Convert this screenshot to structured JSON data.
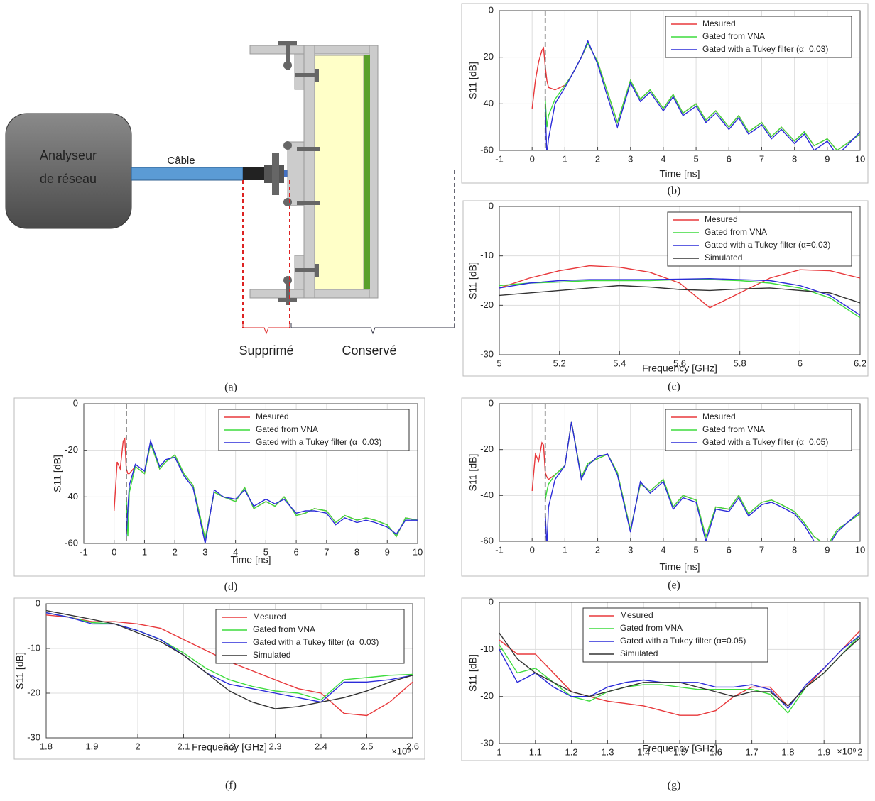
{
  "diagram": {
    "analyzer_lines": [
      "Analyseur",
      "de réseau"
    ],
    "cable": "Câble",
    "removed": "Supprimé",
    "kept": "Conservé",
    "caption": "(a)"
  },
  "chart_data": [
    {
      "type": "line",
      "caption": "(b)",
      "xlabel": "Time [ns]",
      "ylabel": "S11 [dB]",
      "legend": "upper right",
      "grid": true,
      "marker_x": 0.4,
      "xlim": [
        -1,
        10
      ],
      "ylim": [
        -60,
        0
      ],
      "xticks": [
        -1,
        0,
        1,
        2,
        3,
        4,
        5,
        6,
        7,
        8,
        9,
        10
      ],
      "yticks": [
        -60,
        -40,
        -20,
        0
      ],
      "x": [
        0,
        0.1,
        0.2,
        0.3,
        0.35,
        0.4,
        0.45,
        0.5,
        0.7,
        1,
        1.2,
        1.5,
        1.7,
        2,
        2.3,
        2.6,
        3,
        3.3,
        3.6,
        4,
        4.3,
        4.6,
        5,
        5.3,
        5.6,
        6,
        6.3,
        6.6,
        7,
        7.3,
        7.6,
        8,
        8.3,
        8.6,
        9,
        9.3,
        9.6,
        10
      ],
      "series": [
        {
          "name": "Mesured",
          "color": "#e8383b",
          "values": [
            -42,
            -30,
            -22,
            -17,
            -16,
            -24,
            -30,
            -33,
            -34,
            -32,
            -28,
            -20,
            -14,
            -22,
            -35,
            -48,
            -30,
            -38,
            -34,
            -42,
            -36,
            -44,
            -40,
            -47,
            -43,
            -50,
            -45,
            -52,
            -48,
            -54,
            -50,
            -56,
            -52,
            -58,
            -55,
            -60,
            -57,
            -53
          ]
        },
        {
          "name": "Gated from VNA",
          "color": "#3ddc3d",
          "values": [
            null,
            null,
            null,
            null,
            null,
            -38,
            -50,
            -45,
            -38,
            -32,
            -28,
            -20,
            -14,
            -22,
            -35,
            -48,
            -30,
            -38,
            -34,
            -42,
            -36,
            -44,
            -40,
            -47,
            -43,
            -50,
            -45,
            -52,
            -48,
            -54,
            -50,
            -56,
            -52,
            -58,
            -55,
            -60,
            -57,
            -53
          ]
        },
        {
          "name": "Gated with a Tukey filter (α=0.03)",
          "color": "#2b2bd9",
          "values": [
            null,
            null,
            null,
            null,
            null,
            -42,
            -62,
            -55,
            -40,
            -33,
            -28,
            -20,
            -13,
            -23,
            -37,
            -50,
            -31,
            -39,
            -35,
            -43,
            -37,
            -45,
            -41,
            -48,
            -44,
            -51,
            -46,
            -53,
            -49,
            -55,
            -51,
            -57,
            -53,
            -60,
            -56,
            -62,
            -58,
            -52
          ]
        }
      ]
    },
    {
      "type": "line",
      "caption": "(c)",
      "xlabel": "Frequency [GHz]",
      "ylabel": "S11 [dB]",
      "legend": "upper right",
      "grid": true,
      "xlim": [
        5,
        6.2
      ],
      "ylim": [
        -30,
        0
      ],
      "xticks": [
        5,
        5.2,
        5.4,
        5.6,
        5.8,
        6,
        6.2
      ],
      "yticks": [
        -30,
        -20,
        -10,
        0
      ],
      "x": [
        5,
        5.1,
        5.2,
        5.3,
        5.4,
        5.5,
        5.6,
        5.7,
        5.8,
        5.9,
        6,
        6.1,
        6.2
      ],
      "series": [
        {
          "name": "Mesured",
          "color": "#e8383b",
          "values": [
            -16.5,
            -14.5,
            -13,
            -12,
            -12.3,
            -13.3,
            -15.5,
            -20.5,
            -17.5,
            -14.5,
            -12.8,
            -13,
            -14.5
          ]
        },
        {
          "name": "Gated from VNA",
          "color": "#3ddc3d",
          "values": [
            -16,
            -15.5,
            -15.3,
            -15,
            -15,
            -15,
            -14.8,
            -14.8,
            -15,
            -15.5,
            -16.5,
            -18.5,
            -22.5
          ]
        },
        {
          "name": "Gated with a Tukey filter (α=0.03)",
          "color": "#2b2bd9",
          "values": [
            -16.5,
            -15.5,
            -15,
            -14.8,
            -14.8,
            -14.8,
            -14.7,
            -14.6,
            -14.8,
            -15,
            -16,
            -18,
            -22
          ]
        },
        {
          "name": "Simulated",
          "color": "#333333",
          "values": [
            -18,
            -17.5,
            -17,
            -16.5,
            -16,
            -16.3,
            -16.8,
            -17,
            -16.7,
            -16.5,
            -17,
            -17.5,
            -19.5
          ]
        }
      ]
    },
    {
      "type": "line",
      "caption": "(d)",
      "xlabel": "Time [ns]",
      "ylabel": "S11 [dB]",
      "legend": "upper right",
      "grid": true,
      "marker_x": 0.4,
      "xlim": [
        -1,
        10
      ],
      "ylim": [
        -60,
        0
      ],
      "xticks": [
        -1,
        0,
        1,
        2,
        3,
        4,
        5,
        6,
        7,
        8,
        9,
        10
      ],
      "yticks": [
        -60,
        -40,
        -20,
        0
      ],
      "x": [
        0,
        0.1,
        0.2,
        0.3,
        0.35,
        0.4,
        0.45,
        0.5,
        0.7,
        1,
        1.2,
        1.5,
        1.7,
        2,
        2.3,
        2.6,
        3,
        3.3,
        3.6,
        4,
        4.3,
        4.6,
        5,
        5.3,
        5.6,
        6,
        6.3,
        6.6,
        7,
        7.3,
        7.6,
        8,
        8.3,
        8.6,
        9,
        9.3,
        9.6,
        10
      ],
      "series": [
        {
          "name": "Mesured",
          "color": "#e8383b",
          "values": [
            -46,
            -25,
            -28,
            -16,
            -15,
            -28,
            -30,
            -30,
            -27,
            -30,
            -17,
            -28,
            -25,
            -22,
            -30,
            -35,
            -58,
            -38,
            -40,
            -42,
            -36,
            -45,
            -42,
            -44,
            -40,
            -48,
            -47,
            -45,
            -46,
            -51,
            -48,
            -50,
            -49,
            -50,
            -52,
            -57,
            -49,
            -50
          ]
        },
        {
          "name": "Gated from VNA",
          "color": "#3ddc3d",
          "values": [
            null,
            null,
            null,
            null,
            null,
            -40,
            -57,
            -38,
            -27,
            -30,
            -17,
            -28,
            -25,
            -22,
            -30,
            -35,
            -58,
            -38,
            -40,
            -42,
            -36,
            -45,
            -42,
            -44,
            -40,
            -48,
            -47,
            -45,
            -46,
            -51,
            -48,
            -50,
            -49,
            -50,
            -52,
            -57,
            -49,
            -50
          ]
        },
        {
          "name": "Gated with a Tukey filter (α=0.03)",
          "color": "#2b2bd9",
          "values": [
            null,
            null,
            null,
            null,
            null,
            -57,
            -45,
            -35,
            -26,
            -29,
            -16,
            -27,
            -24,
            -23,
            -31,
            -36,
            -60,
            -37,
            -40,
            -41,
            -37,
            -44,
            -41,
            -43,
            -41,
            -47,
            -46,
            -46,
            -47,
            -52,
            -49,
            -51,
            -50,
            -51,
            -53,
            -56,
            -50,
            -50
          ]
        }
      ]
    },
    {
      "type": "line",
      "caption": "(e)",
      "xlabel": "Time [ns]",
      "ylabel": "S11 [dB]",
      "legend": "upper right",
      "grid": true,
      "marker_x": 0.4,
      "xlim": [
        -1,
        10
      ],
      "ylim": [
        -60,
        0
      ],
      "xticks": [
        -1,
        0,
        1,
        2,
        3,
        4,
        5,
        6,
        7,
        8,
        9,
        10
      ],
      "yticks": [
        -60,
        -40,
        -20,
        0
      ],
      "x": [
        0,
        0.1,
        0.2,
        0.3,
        0.35,
        0.4,
        0.45,
        0.5,
        0.7,
        1,
        1.2,
        1.5,
        1.7,
        2,
        2.3,
        2.6,
        3,
        3.3,
        3.6,
        4,
        4.3,
        4.6,
        5,
        5.3,
        5.6,
        6,
        6.3,
        6.6,
        7,
        7.3,
        7.6,
        8,
        8.3,
        8.6,
        9,
        9.3,
        9.6,
        10
      ],
      "series": [
        {
          "name": "Mesured",
          "color": "#e8383b",
          "values": [
            -38,
            -22,
            -25,
            -17,
            -18,
            -30,
            -32,
            -33,
            -31,
            -27,
            -8,
            -32,
            -26,
            -24,
            -22,
            -30,
            -55,
            -35,
            -38,
            -33,
            -45,
            -40,
            -42,
            -58,
            -45,
            -46,
            -40,
            -48,
            -43,
            -42,
            -44,
            -47,
            -52,
            -58,
            -62,
            -55,
            -52,
            -48
          ]
        },
        {
          "name": "Gated from VNA",
          "color": "#3ddc3d",
          "values": [
            null,
            null,
            null,
            null,
            null,
            -42,
            -38,
            -35,
            -31,
            -27,
            -8,
            -32,
            -26,
            -24,
            -22,
            -30,
            -55,
            -35,
            -38,
            -33,
            -45,
            -40,
            -42,
            -58,
            -45,
            -46,
            -40,
            -48,
            -43,
            -42,
            -44,
            -47,
            -52,
            -58,
            -62,
            -55,
            -52,
            -48
          ]
        },
        {
          "name": "Gated with a Tukey filter (α=0.05)",
          "color": "#2b2bd9",
          "values": [
            null,
            null,
            null,
            null,
            null,
            -48,
            -62,
            -45,
            -33,
            -27,
            -8,
            -33,
            -27,
            -23,
            -22,
            -31,
            -56,
            -34,
            -39,
            -34,
            -46,
            -41,
            -43,
            -60,
            -46,
            -47,
            -41,
            -49,
            -44,
            -43,
            -45,
            -48,
            -53,
            -60,
            -63,
            -56,
            -52,
            -47
          ]
        }
      ]
    },
    {
      "type": "line",
      "caption": "(f)",
      "xlabel": "Frequency [GHz]",
      "ylabel": "S11 [dB]",
      "x_multiplier": "×10⁹",
      "legend": "upper right",
      "grid": true,
      "xlim": [
        1.8,
        2.6
      ],
      "ylim": [
        -30,
        0
      ],
      "xticks": [
        1.8,
        1.9,
        2,
        2.1,
        2.2,
        2.3,
        2.4,
        2.5,
        2.6
      ],
      "yticks": [
        -30,
        -20,
        -10,
        0
      ],
      "x": [
        1.8,
        1.85,
        1.9,
        1.95,
        2,
        2.05,
        2.1,
        2.15,
        2.2,
        2.25,
        2.3,
        2.35,
        2.4,
        2.45,
        2.5,
        2.55,
        2.6
      ],
      "series": [
        {
          "name": "Mesured",
          "color": "#e8383b",
          "values": [
            -2.5,
            -3,
            -4,
            -4,
            -4.5,
            -5.5,
            -8,
            -10.5,
            -13,
            -15,
            -17,
            -19,
            -20,
            -24.5,
            -25,
            -22,
            -17.5
          ]
        },
        {
          "name": "Gated from VNA",
          "color": "#3ddc3d",
          "values": [
            -2,
            -3,
            -4.2,
            -4.5,
            -6,
            -8,
            -11,
            -14.5,
            -17,
            -18.5,
            -19.5,
            -20,
            -21.5,
            -17,
            -16.5,
            -16,
            -15.8
          ]
        },
        {
          "name": "Gated with a Tukey filter (α=0.03)",
          "color": "#2b2bd9",
          "values": [
            -2,
            -3,
            -4.5,
            -4.5,
            -6,
            -8,
            -11.5,
            -15.5,
            -18,
            -19,
            -20,
            -21,
            -22,
            -17.5,
            -17.5,
            -17,
            -16
          ]
        },
        {
          "name": "Simulated",
          "color": "#333333",
          "values": [
            -1.5,
            -2.5,
            -3.5,
            -4.5,
            -6.5,
            -8.5,
            -11.5,
            -15.5,
            -19.5,
            -22,
            -23.5,
            -23,
            -22,
            -21,
            -19.5,
            -17.5,
            -16
          ]
        }
      ]
    },
    {
      "type": "line",
      "caption": "(g)",
      "xlabel": "Frequency [GHz]",
      "ylabel": "S11 [dB]",
      "x_multiplier": "×10⁹",
      "legend": "upper center",
      "grid": true,
      "xlim": [
        1,
        2
      ],
      "ylim": [
        -30,
        0
      ],
      "xticks": [
        1,
        1.1,
        1.2,
        1.3,
        1.4,
        1.5,
        1.6,
        1.7,
        1.8,
        1.9,
        2
      ],
      "yticks": [
        -30,
        -20,
        -10,
        0
      ],
      "x": [
        1,
        1.05,
        1.1,
        1.15,
        1.2,
        1.25,
        1.3,
        1.35,
        1.4,
        1.45,
        1.5,
        1.55,
        1.6,
        1.65,
        1.7,
        1.75,
        1.8,
        1.85,
        1.9,
        1.95,
        2
      ],
      "series": [
        {
          "name": "Mesured",
          "color": "#e8383b",
          "values": [
            -8,
            -11,
            -11,
            -15,
            -19,
            -20,
            -21,
            -21.5,
            -22,
            -23,
            -24,
            -24,
            -23,
            -20,
            -18,
            -18,
            -22,
            -18,
            -14,
            -10,
            -6
          ]
        },
        {
          "name": "Gated from VNA",
          "color": "#3ddc3d",
          "values": [
            -9,
            -15,
            -14,
            -17,
            -20,
            -21,
            -19,
            -18,
            -17.5,
            -17.5,
            -18,
            -18.5,
            -18.5,
            -18.5,
            -18.5,
            -19.5,
            -23.5,
            -18,
            -15,
            -11,
            -7
          ]
        },
        {
          "name": "Gated with a Tukey filter (α=0.05)",
          "color": "#2b2bd9",
          "values": [
            -10,
            -17,
            -15,
            -18,
            -20,
            -20,
            -18,
            -17,
            -16.5,
            -17,
            -17,
            -17,
            -18,
            -18,
            -17.5,
            -18.5,
            -22.5,
            -17.5,
            -14,
            -10,
            -7
          ]
        },
        {
          "name": "Simulated",
          "color": "#333333",
          "values": [
            -6.5,
            -12,
            -15,
            -17,
            -19,
            -20,
            -19,
            -18,
            -17,
            -17,
            -17,
            -18,
            -19,
            -20,
            -19,
            -19,
            -22,
            -18,
            -15,
            -11,
            -7.5
          ]
        }
      ]
    }
  ]
}
